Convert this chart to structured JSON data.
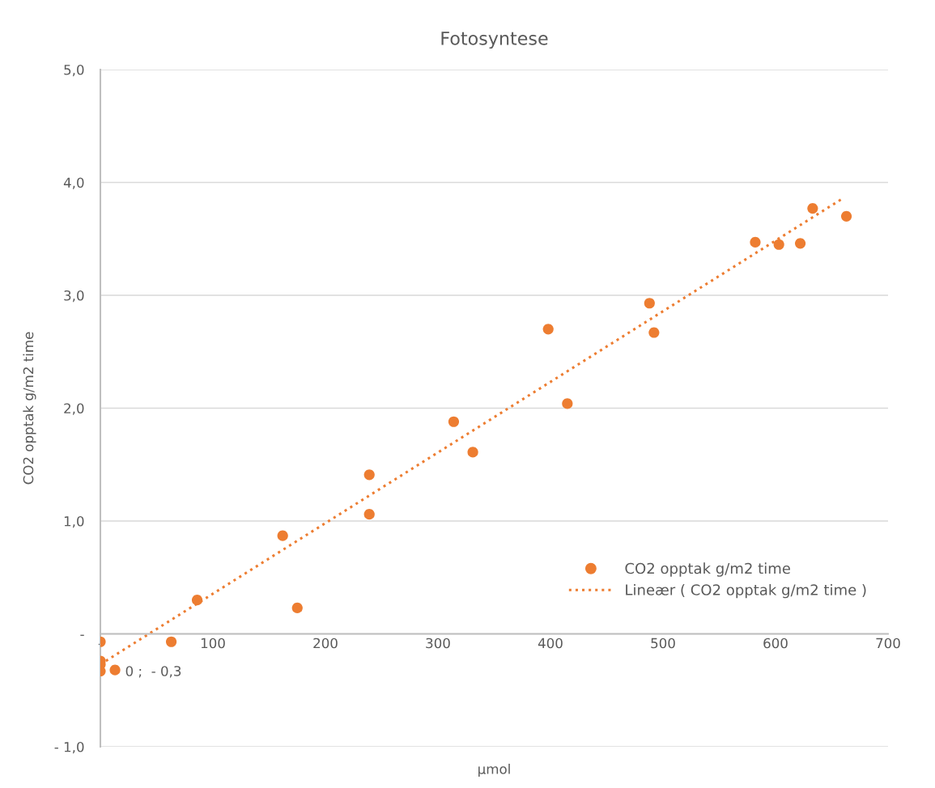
{
  "chart_data": {
    "type": "scatter",
    "title": "Fotosyntese",
    "xlabel": "µmol",
    "ylabel": "CO2 opptak g/m2 time",
    "series": [
      {
        "name": "CO2 opptak g/m2 time",
        "color": "#ed7d31",
        "x": [
          0,
          0,
          0,
          0,
          13,
          63,
          86,
          162,
          175,
          239,
          239,
          314,
          331,
          398,
          415,
          488,
          492,
          582,
          603,
          622,
          633,
          663
        ],
        "values": [
          -0.07,
          -0.24,
          -0.27,
          -0.33,
          -0.32,
          -0.07,
          0.3,
          0.87,
          0.23,
          1.41,
          1.06,
          1.88,
          1.61,
          2.7,
          2.04,
          2.93,
          2.67,
          3.47,
          3.45,
          3.46,
          3.77,
          3.7
        ]
      },
      {
        "name": "Lineær ( CO2 opptak g/m2 time )",
        "color": "#ed7d31",
        "type": "line",
        "line_style": "dotted",
        "marker": "none",
        "x": [
          0,
          660
        ],
        "values": [
          -0.27,
          3.86
        ]
      }
    ],
    "annotations": [
      {
        "text": "0 ;  - 0,3",
        "x": 0,
        "y": -0.3
      }
    ],
    "xlim": [
      0,
      700
    ],
    "xticks": [
      {
        "value": 0,
        "label": "-"
      },
      100,
      200,
      300,
      400,
      500,
      600,
      700
    ],
    "ylim": [
      -1.0,
      5.0
    ],
    "yticks": [
      {
        "value": -1.0,
        "label": "- 1,0"
      },
      {
        "value": 0,
        "label": "-"
      },
      {
        "value": 1.0,
        "label": "1,0"
      },
      {
        "value": 2.0,
        "label": "2,0"
      },
      {
        "value": 3.0,
        "label": "3,0"
      },
      {
        "value": 4.0,
        "label": "4,0"
      },
      {
        "value": 5.0,
        "label": "5,0"
      }
    ],
    "grid": "y",
    "legend": "lower right",
    "marker": "circle"
  }
}
